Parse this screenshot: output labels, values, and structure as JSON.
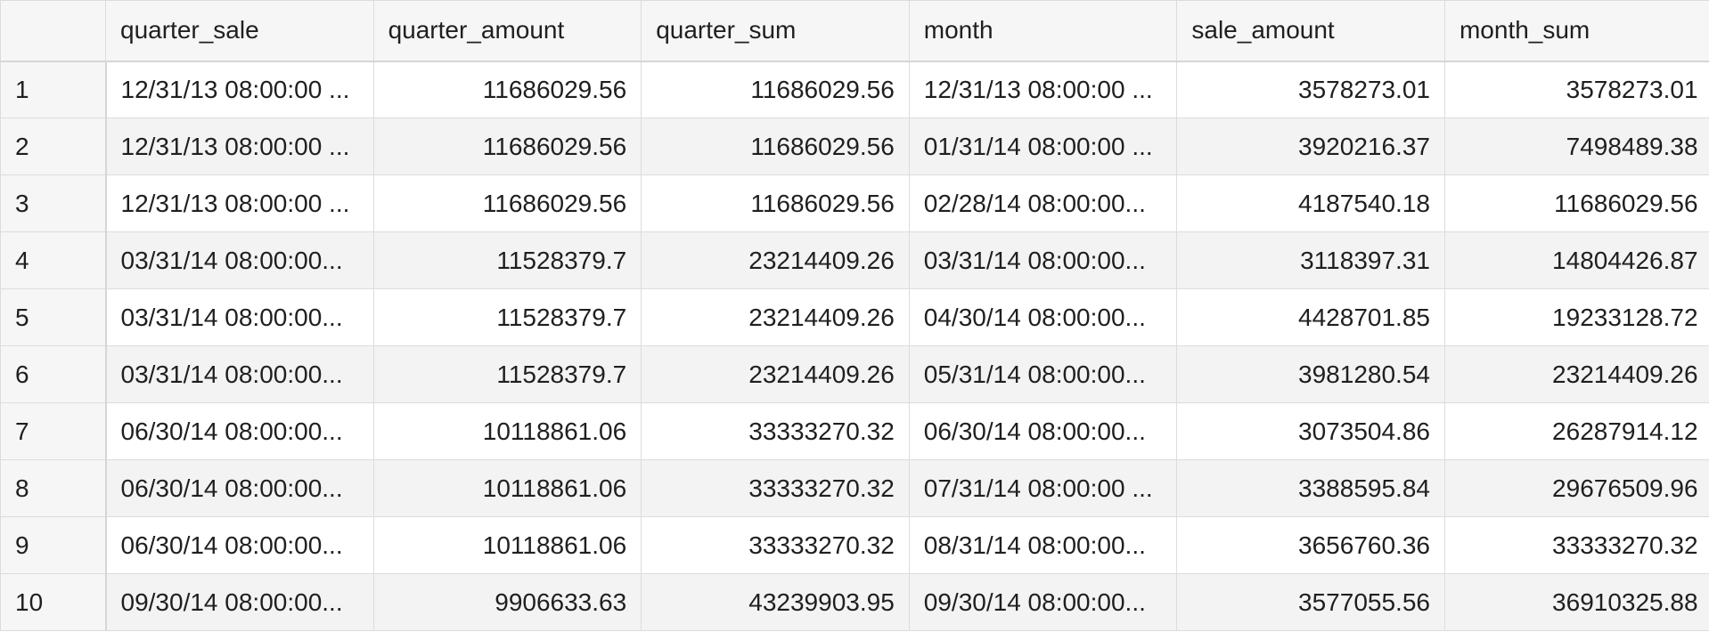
{
  "table": {
    "headers": [
      "",
      "quarter_sale",
      "quarter_amount",
      "quarter_sum",
      "month",
      "sale_amount",
      "month_sum"
    ],
    "rows": [
      {
        "index": "1",
        "quarter_sale": "12/31/13 08:00:00 ...",
        "quarter_amount": "11686029.56",
        "quarter_sum": "11686029.56",
        "month": "12/31/13 08:00:00 ...",
        "sale_amount": "3578273.01",
        "month_sum": "3578273.01"
      },
      {
        "index": "2",
        "quarter_sale": "12/31/13 08:00:00 ...",
        "quarter_amount": "11686029.56",
        "quarter_sum": "11686029.56",
        "month": "01/31/14 08:00:00 ...",
        "sale_amount": "3920216.37",
        "month_sum": "7498489.38"
      },
      {
        "index": "3",
        "quarter_sale": "12/31/13 08:00:00 ...",
        "quarter_amount": "11686029.56",
        "quarter_sum": "11686029.56",
        "month": "02/28/14 08:00:00...",
        "sale_amount": "4187540.18",
        "month_sum": "11686029.56"
      },
      {
        "index": "4",
        "quarter_sale": "03/31/14 08:00:00...",
        "quarter_amount": "11528379.7",
        "quarter_sum": "23214409.26",
        "month": "03/31/14 08:00:00...",
        "sale_amount": "3118397.31",
        "month_sum": "14804426.87"
      },
      {
        "index": "5",
        "quarter_sale": "03/31/14 08:00:00...",
        "quarter_amount": "11528379.7",
        "quarter_sum": "23214409.26",
        "month": "04/30/14 08:00:00...",
        "sale_amount": "4428701.85",
        "month_sum": "19233128.72"
      },
      {
        "index": "6",
        "quarter_sale": "03/31/14 08:00:00...",
        "quarter_amount": "11528379.7",
        "quarter_sum": "23214409.26",
        "month": "05/31/14 08:00:00...",
        "sale_amount": "3981280.54",
        "month_sum": "23214409.26"
      },
      {
        "index": "7",
        "quarter_sale": "06/30/14 08:00:00...",
        "quarter_amount": "10118861.06",
        "quarter_sum": "33333270.32",
        "month": "06/30/14 08:00:00...",
        "sale_amount": "3073504.86",
        "month_sum": "26287914.12"
      },
      {
        "index": "8",
        "quarter_sale": "06/30/14 08:00:00...",
        "quarter_amount": "10118861.06",
        "quarter_sum": "33333270.32",
        "month": "07/31/14 08:00:00 ...",
        "sale_amount": "3388595.84",
        "month_sum": "29676509.96"
      },
      {
        "index": "9",
        "quarter_sale": "06/30/14 08:00:00...",
        "quarter_amount": "10118861.06",
        "quarter_sum": "33333270.32",
        "month": "08/31/14 08:00:00...",
        "sale_amount": "3656760.36",
        "month_sum": "33333270.32"
      },
      {
        "index": "10",
        "quarter_sale": "09/30/14 08:00:00...",
        "quarter_amount": "9906633.63",
        "quarter_sum": "43239903.95",
        "month": "09/30/14 08:00:00...",
        "sale_amount": "3577055.56",
        "month_sum": "36910325.88"
      }
    ]
  }
}
